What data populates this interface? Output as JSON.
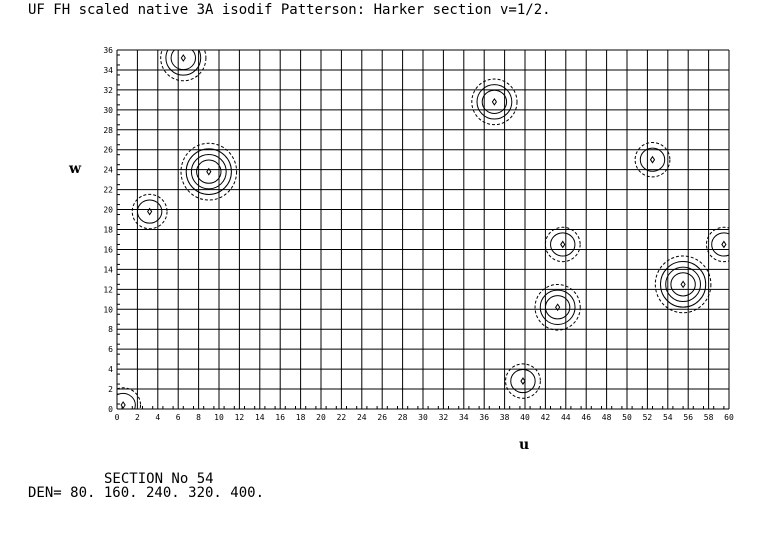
{
  "chart_data": {
    "type": "contour",
    "title": "UF FH scaled native 3A isodif Patterson: Harker section v=1/2.",
    "xlabel": "u",
    "ylabel": "w",
    "xlim": [
      0,
      60
    ],
    "ylim": [
      0,
      36
    ],
    "x_ticks": [
      0,
      2,
      4,
      6,
      8,
      10,
      12,
      14,
      16,
      18,
      20,
      22,
      24,
      26,
      28,
      30,
      32,
      34,
      36,
      38,
      40,
      42,
      44,
      46,
      48,
      50,
      52,
      54,
      56,
      58,
      60
    ],
    "y_ticks": [
      0,
      2,
      4,
      6,
      8,
      10,
      12,
      14,
      16,
      18,
      20,
      22,
      24,
      26,
      28,
      30,
      32,
      34,
      36
    ],
    "grid": true,
    "contour_levels": [
      80,
      160,
      240,
      320,
      400
    ],
    "peaks": [
      {
        "u": 9.0,
        "w": 23.8,
        "levels": 4
      },
      {
        "u": 37.0,
        "w": 30.8,
        "levels": 3
      },
      {
        "u": 55.5,
        "w": 12.5,
        "levels": 4
      },
      {
        "u": 43.2,
        "w": 10.2,
        "levels": 3
      },
      {
        "u": 6.5,
        "w": 35.2,
        "levels": 3
      },
      {
        "u": 3.2,
        "w": 19.8,
        "levels": 2
      },
      {
        "u": 39.8,
        "w": 2.8,
        "levels": 2
      },
      {
        "u": 43.7,
        "w": 16.5,
        "levels": 2
      },
      {
        "u": 52.5,
        "w": 25.0,
        "levels": 2
      },
      {
        "u": 59.5,
        "w": 16.5,
        "levels": 2
      },
      {
        "u": 0.6,
        "w": 0.4,
        "levels": 2
      }
    ]
  },
  "footer": {
    "section": "SECTION No  54",
    "den": "DEN=  80. 160. 240. 320. 400."
  }
}
